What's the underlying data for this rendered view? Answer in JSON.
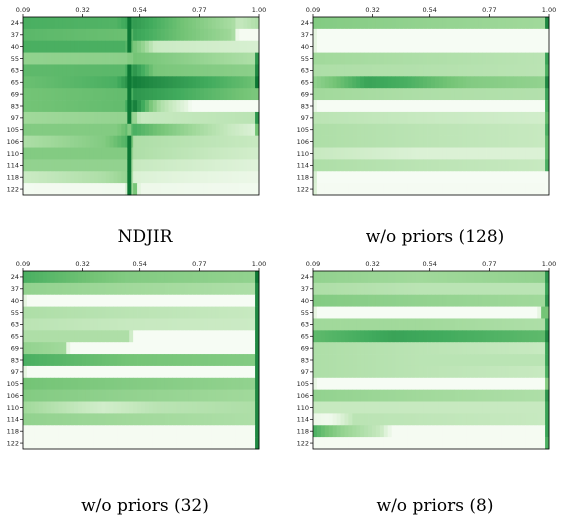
{
  "x_tick_labels": [
    "0.09",
    "0.32",
    "0.54",
    "0.77",
    "1.00"
  ],
  "y_tick_labels": [
    "24",
    "37",
    "40",
    "55",
    "63",
    "65",
    "69",
    "83",
    "97",
    "105",
    "106",
    "110",
    "114",
    "118",
    "122"
  ],
  "colors": {
    "low": "#f7fcf5",
    "high": "#00441b",
    "frame": "#000000"
  },
  "chart_data": [
    {
      "type": "heatmap",
      "title": "NDJIR",
      "colormap": "Greens",
      "x_ticks": [
        0.09,
        0.32,
        0.54,
        0.77,
        1.0
      ],
      "rows": [
        "24",
        "37",
        "40",
        "55",
        "63",
        "65",
        "69",
        "83",
        "97",
        "105",
        "106",
        "110",
        "114",
        "118",
        "122"
      ],
      "row_profiles": [
        {
          "x": [
            0.09,
            0.45,
            0.52,
            0.9,
            0.92,
            1.0
          ],
          "v": [
            0.7,
            0.68,
            0.78,
            0.42,
            0.3,
            0.4
          ]
        },
        {
          "x": [
            0.09,
            0.5,
            0.52,
            0.9,
            0.92,
            1.0
          ],
          "v": [
            0.66,
            0.62,
            0.75,
            0.45,
            0.02,
            0.02
          ]
        },
        {
          "x": [
            0.09,
            0.48,
            0.55,
            0.6,
            1.0
          ],
          "v": [
            0.7,
            0.7,
            0.5,
            0.28,
            0.22
          ]
        },
        {
          "x": [
            0.09,
            0.5,
            0.52,
            0.98,
            0.99,
            1.0
          ],
          "v": [
            0.5,
            0.52,
            0.6,
            0.4,
            0.8,
            0.8
          ]
        },
        {
          "x": [
            0.09,
            0.48,
            0.52,
            0.6,
            0.98,
            0.99,
            1.0
          ],
          "v": [
            0.65,
            0.66,
            0.8,
            0.58,
            0.52,
            0.85,
            0.85
          ]
        },
        {
          "x": [
            0.09,
            0.45,
            0.52,
            0.98,
            0.99,
            1.0
          ],
          "v": [
            0.62,
            0.7,
            0.88,
            0.62,
            0.9,
            0.9
          ]
        },
        {
          "x": [
            0.09,
            0.5,
            0.52,
            0.98,
            1.0
          ],
          "v": [
            0.6,
            0.64,
            0.8,
            0.58,
            0.58
          ]
        },
        {
          "x": [
            0.09,
            0.48,
            0.52,
            0.62,
            0.72,
            0.74,
            1.0
          ],
          "v": [
            0.6,
            0.64,
            0.88,
            0.4,
            0.15,
            0.01,
            0.01
          ]
        },
        {
          "x": [
            0.09,
            0.52,
            0.54,
            0.98,
            0.99,
            1.0
          ],
          "v": [
            0.45,
            0.5,
            0.3,
            0.35,
            0.8,
            0.8
          ]
        },
        {
          "x": [
            0.09,
            0.45,
            0.52,
            0.98,
            0.99,
            1.0
          ],
          "v": [
            0.55,
            0.55,
            0.7,
            0.2,
            0.6,
            0.6
          ]
        },
        {
          "x": [
            0.09,
            0.4,
            0.5,
            0.52,
            0.98,
            1.0
          ],
          "v": [
            0.4,
            0.55,
            0.7,
            0.4,
            0.3,
            0.3
          ]
        },
        {
          "x": [
            0.09,
            0.5,
            0.52,
            0.98,
            1.0
          ],
          "v": [
            0.55,
            0.55,
            0.4,
            0.25,
            0.25
          ]
        },
        {
          "x": [
            0.09,
            0.5,
            0.52,
            0.98,
            1.0
          ],
          "v": [
            0.5,
            0.5,
            0.3,
            0.18,
            0.18
          ]
        },
        {
          "x": [
            0.09,
            0.4,
            0.5,
            0.52,
            0.98,
            1.0
          ],
          "v": [
            0.28,
            0.4,
            0.5,
            0.2,
            0.1,
            0.1
          ]
        },
        {
          "x": [
            0.09,
            0.48,
            0.52,
            0.54,
            0.98,
            1.0
          ],
          "v": [
            0.03,
            0.05,
            0.65,
            0.08,
            0.05,
            0.05
          ]
        }
      ],
      "spike_x": 0.5
    },
    {
      "type": "heatmap",
      "title": "w/o priors (128)",
      "colormap": "Greens",
      "x_ticks": [
        0.09,
        0.32,
        0.54,
        0.77,
        1.0
      ],
      "rows": [
        "24",
        "37",
        "40",
        "55",
        "63",
        "65",
        "69",
        "83",
        "97",
        "105",
        "106",
        "110",
        "114",
        "118",
        "122"
      ],
      "row_profiles": [
        {
          "x": [
            0.09,
            0.5,
            0.98,
            0.99,
            1.0
          ],
          "v": [
            0.55,
            0.5,
            0.45,
            0.85,
            0.85
          ]
        },
        {
          "x": [
            0.09,
            0.1,
            1.0
          ],
          "v": [
            0.55,
            0.01,
            0.01
          ]
        },
        {
          "x": [
            0.09,
            0.1,
            1.0
          ],
          "v": [
            0.55,
            0.01,
            0.01
          ]
        },
        {
          "x": [
            0.09,
            0.5,
            0.98,
            0.99,
            1.0
          ],
          "v": [
            0.45,
            0.4,
            0.35,
            0.75,
            0.75
          ]
        },
        {
          "x": [
            0.09,
            0.5,
            0.98,
            0.99,
            1.0
          ],
          "v": [
            0.4,
            0.38,
            0.35,
            0.7,
            0.7
          ]
        },
        {
          "x": [
            0.09,
            0.3,
            0.45,
            0.7,
            0.98,
            0.99,
            1.0
          ],
          "v": [
            0.5,
            0.75,
            0.7,
            0.55,
            0.5,
            0.85,
            0.85
          ]
        },
        {
          "x": [
            0.09,
            0.5,
            0.98,
            0.99,
            1.0
          ],
          "v": [
            0.45,
            0.4,
            0.38,
            0.75,
            0.75
          ]
        },
        {
          "x": [
            0.09,
            0.1,
            0.98,
            0.99,
            1.0
          ],
          "v": [
            0.45,
            0.01,
            0.01,
            0.7,
            0.7
          ]
        },
        {
          "x": [
            0.09,
            0.5,
            0.98,
            0.99,
            1.0
          ],
          "v": [
            0.35,
            0.3,
            0.25,
            0.65,
            0.65
          ]
        },
        {
          "x": [
            0.09,
            0.5,
            0.98,
            0.99,
            1.0
          ],
          "v": [
            0.4,
            0.35,
            0.3,
            0.7,
            0.7
          ]
        },
        {
          "x": [
            0.09,
            0.5,
            0.98,
            0.99,
            1.0
          ],
          "v": [
            0.4,
            0.35,
            0.3,
            0.65,
            0.65
          ]
        },
        {
          "x": [
            0.09,
            0.5,
            0.98,
            0.99,
            1.0
          ],
          "v": [
            0.3,
            0.2,
            0.2,
            0.65,
            0.65
          ]
        },
        {
          "x": [
            0.09,
            0.5,
            0.98,
            0.99,
            1.0
          ],
          "v": [
            0.4,
            0.35,
            0.3,
            0.7,
            0.7
          ]
        },
        {
          "x": [
            0.09,
            0.1,
            0.98,
            0.99,
            1.0
          ],
          "v": [
            0.85,
            0.01,
            0.01,
            0.01,
            0.01
          ]
        },
        {
          "x": [
            0.09,
            0.1,
            0.98,
            0.99,
            1.0
          ],
          "v": [
            0.75,
            0.02,
            0.02,
            0.01,
            0.01
          ]
        }
      ],
      "spike_x": null
    },
    {
      "type": "heatmap",
      "title": "w/o priors (32)",
      "colormap": "Greens",
      "x_ticks": [
        0.09,
        0.32,
        0.54,
        0.77,
        1.0
      ],
      "rows": [
        "24",
        "37",
        "40",
        "55",
        "63",
        "65",
        "69",
        "83",
        "97",
        "105",
        "106",
        "110",
        "114",
        "118",
        "122"
      ],
      "row_profiles": [
        {
          "x": [
            0.09,
            0.5,
            0.98,
            0.99,
            1.0
          ],
          "v": [
            0.7,
            0.55,
            0.5,
            0.9,
            0.9
          ]
        },
        {
          "x": [
            0.09,
            0.5,
            0.98,
            0.99,
            1.0
          ],
          "v": [
            0.5,
            0.45,
            0.4,
            0.85,
            0.85
          ]
        },
        {
          "x": [
            0.09,
            0.1,
            0.98,
            0.99,
            1.0
          ],
          "v": [
            0.55,
            0.01,
            0.01,
            0.85,
            0.85
          ]
        },
        {
          "x": [
            0.09,
            0.5,
            0.98,
            0.99,
            1.0
          ],
          "v": [
            0.4,
            0.35,
            0.3,
            0.85,
            0.85
          ]
        },
        {
          "x": [
            0.09,
            0.5,
            0.98,
            0.99,
            1.0
          ],
          "v": [
            0.35,
            0.3,
            0.28,
            0.85,
            0.85
          ]
        },
        {
          "x": [
            0.09,
            0.5,
            0.52,
            0.98,
            0.99,
            1.0
          ],
          "v": [
            0.4,
            0.4,
            0.01,
            0.01,
            0.85,
            0.85
          ]
        },
        {
          "x": [
            0.09,
            0.25,
            0.27,
            0.98,
            0.99,
            1.0
          ],
          "v": [
            0.5,
            0.45,
            0.01,
            0.01,
            0.85,
            0.85
          ]
        },
        {
          "x": [
            0.09,
            0.5,
            0.98,
            0.99,
            1.0
          ],
          "v": [
            0.7,
            0.6,
            0.55,
            0.85,
            0.85
          ]
        },
        {
          "x": [
            0.09,
            0.1,
            0.98,
            0.99,
            1.0
          ],
          "v": [
            0.55,
            0.01,
            0.01,
            0.85,
            0.85
          ]
        },
        {
          "x": [
            0.09,
            0.5,
            0.98,
            0.99,
            1.0
          ],
          "v": [
            0.6,
            0.55,
            0.5,
            0.85,
            0.85
          ]
        },
        {
          "x": [
            0.09,
            0.5,
            0.98,
            0.99,
            1.0
          ],
          "v": [
            0.55,
            0.5,
            0.45,
            0.85,
            0.85
          ]
        },
        {
          "x": [
            0.09,
            0.4,
            0.6,
            0.98,
            0.99,
            1.0
          ],
          "v": [
            0.45,
            0.25,
            0.35,
            0.4,
            0.85,
            0.85
          ]
        },
        {
          "x": [
            0.09,
            0.5,
            0.98,
            0.99,
            1.0
          ],
          "v": [
            0.5,
            0.45,
            0.4,
            0.85,
            0.85
          ]
        },
        {
          "x": [
            0.09,
            0.1,
            0.98,
            0.99,
            1.0
          ],
          "v": [
            0.02,
            0.02,
            0.02,
            0.85,
            0.85
          ]
        },
        {
          "x": [
            0.09,
            0.1,
            0.98,
            0.99,
            1.0
          ],
          "v": [
            0.02,
            0.02,
            0.02,
            0.85,
            0.85
          ]
        }
      ],
      "spike_x": null
    },
    {
      "type": "heatmap",
      "title": "w/o priors (8)",
      "colormap": "Greens",
      "x_ticks": [
        0.09,
        0.32,
        0.54,
        0.77,
        1.0
      ],
      "rows": [
        "24",
        "37",
        "40",
        "55",
        "63",
        "65",
        "69",
        "83",
        "97",
        "105",
        "106",
        "110",
        "114",
        "118",
        "122"
      ],
      "row_profiles": [
        {
          "x": [
            0.09,
            0.5,
            0.98,
            0.99,
            1.0
          ],
          "v": [
            0.5,
            0.45,
            0.5,
            0.8,
            0.8
          ]
        },
        {
          "x": [
            0.09,
            0.5,
            0.98,
            0.99,
            1.0
          ],
          "v": [
            0.4,
            0.35,
            0.35,
            0.75,
            0.75
          ]
        },
        {
          "x": [
            0.09,
            0.5,
            0.98,
            0.99,
            1.0
          ],
          "v": [
            0.55,
            0.5,
            0.45,
            0.8,
            0.8
          ]
        },
        {
          "x": [
            0.09,
            0.1,
            0.96,
            0.97,
            1.0
          ],
          "v": [
            0.5,
            0.01,
            0.01,
            0.6,
            0.6
          ]
        },
        {
          "x": [
            0.09,
            0.5,
            0.98,
            0.99,
            1.0
          ],
          "v": [
            0.45,
            0.45,
            0.4,
            0.75,
            0.75
          ]
        },
        {
          "x": [
            0.09,
            0.4,
            0.7,
            0.98,
            0.99,
            1.0
          ],
          "v": [
            0.65,
            0.75,
            0.7,
            0.65,
            0.85,
            0.85
          ]
        },
        {
          "x": [
            0.09,
            0.5,
            0.98,
            0.99,
            1.0
          ],
          "v": [
            0.4,
            0.35,
            0.3,
            0.75,
            0.75
          ]
        },
        {
          "x": [
            0.09,
            0.5,
            0.98,
            0.99,
            1.0
          ],
          "v": [
            0.4,
            0.35,
            0.35,
            0.75,
            0.75
          ]
        },
        {
          "x": [
            0.09,
            0.5,
            0.98,
            0.99,
            1.0
          ],
          "v": [
            0.4,
            0.35,
            0.3,
            0.7,
            0.7
          ]
        },
        {
          "x": [
            0.09,
            0.1,
            0.98,
            0.99,
            1.0
          ],
          "v": [
            0.45,
            0.01,
            0.01,
            0.55,
            0.55
          ]
        },
        {
          "x": [
            0.09,
            0.5,
            0.98,
            0.99,
            1.0
          ],
          "v": [
            0.5,
            0.45,
            0.4,
            0.8,
            0.8
          ]
        },
        {
          "x": [
            0.09,
            0.5,
            0.98,
            0.99,
            1.0
          ],
          "v": [
            0.3,
            0.3,
            0.3,
            0.75,
            0.75
          ]
        },
        {
          "x": [
            0.09,
            0.15,
            0.25,
            0.98,
            0.99,
            1.0
          ],
          "v": [
            0.1,
            0.05,
            0.35,
            0.3,
            0.75,
            0.75
          ]
        },
        {
          "x": [
            0.09,
            0.2,
            0.35,
            0.4,
            0.98,
            0.99,
            1.0
          ],
          "v": [
            0.7,
            0.5,
            0.3,
            0.02,
            0.02,
            0.75,
            0.75
          ]
        },
        {
          "x": [
            0.09,
            0.1,
            0.98,
            0.99,
            1.0
          ],
          "v": [
            0.02,
            0.02,
            0.02,
            0.7,
            0.7
          ]
        }
      ],
      "spike_x": null
    }
  ]
}
